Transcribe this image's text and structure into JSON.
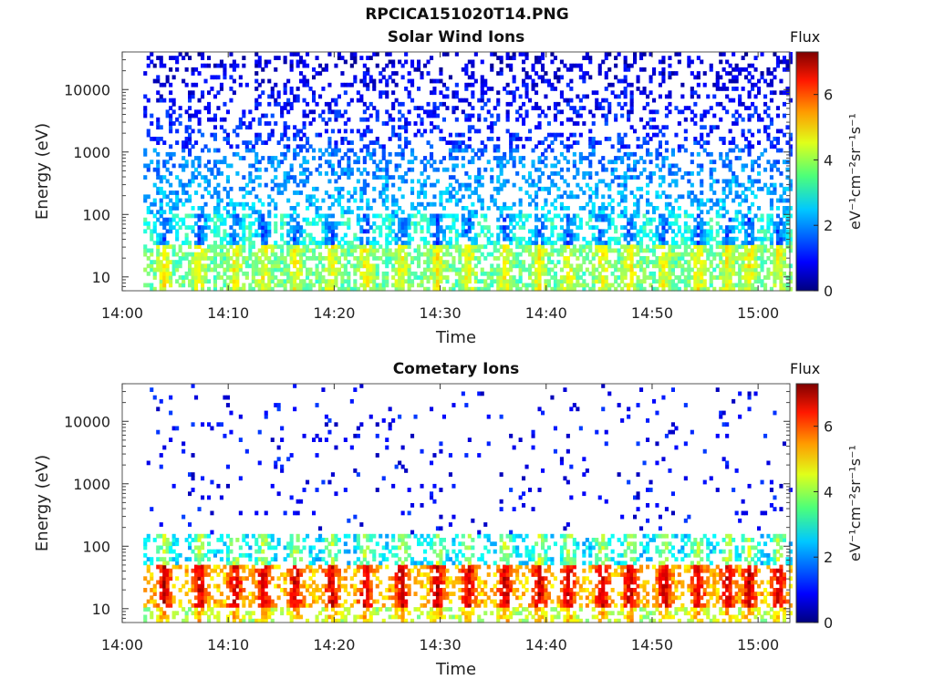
{
  "figure_title": "RPCICA151020T14.PNG",
  "chart_data": [
    {
      "type": "heatmap",
      "title": "Solar Wind Ions",
      "xlabel": "Time",
      "ylabel": "Energy (eV)",
      "x_ticks": [
        "14:00",
        "14:10",
        "14:20",
        "14:30",
        "14:40",
        "14:50",
        "15:00"
      ],
      "x_range_minutes": [
        0,
        63
      ],
      "y_scale": "log",
      "y_ticks": [
        "10",
        "100",
        "1000",
        "10000"
      ],
      "y_range": [
        6,
        40000
      ],
      "colorbar": {
        "title": "Flux",
        "label": "eV⁻¹cm⁻²sr⁻¹s⁻¹",
        "ticks": [
          "0",
          "2",
          "4",
          "6"
        ],
        "range": [
          0,
          7.3
        ],
        "colormap": "jet"
      },
      "flux_typical": {
        "below_30eV": 3.5,
        "30_to_100eV": 3.0,
        "100_to_1000eV": 2.3,
        "above_1000eV": 1.3
      },
      "flux_peak": 4.5,
      "burst_times_minutes": [
        3.8,
        7.2,
        10.5,
        13.2,
        16.2,
        19.6,
        22.8,
        26.2,
        29.6,
        32.5,
        36.0,
        39.2,
        42.0,
        45.1,
        47.8,
        51.0,
        54.2,
        57.0,
        59.0,
        61.8
      ]
    },
    {
      "type": "heatmap",
      "title": "Cometary Ions",
      "xlabel": "Time",
      "ylabel": "Energy (eV)",
      "x_ticks": [
        "14:00",
        "14:10",
        "14:20",
        "14:30",
        "14:40",
        "14:50",
        "15:00"
      ],
      "x_range_minutes": [
        0,
        63
      ],
      "y_scale": "log",
      "y_ticks": [
        "10",
        "100",
        "1000",
        "10000"
      ],
      "y_range": [
        6,
        40000
      ],
      "colorbar": {
        "title": "Flux",
        "label": "eV⁻¹cm⁻²sr⁻¹s⁻¹",
        "ticks": [
          "0",
          "2",
          "4",
          "6"
        ],
        "range": [
          0,
          7.3
        ],
        "colormap": "jet"
      },
      "flux_typical": {
        "band_10_to_50eV": 5.0,
        "band_50_to_150eV": 2.5,
        "above_150eV": 0.9
      },
      "flux_peak": 6.8,
      "burst_times_minutes": [
        3.8,
        7.2,
        10.5,
        13.2,
        16.2,
        19.6,
        22.8,
        26.2,
        29.6,
        32.5,
        36.0,
        39.2,
        42.0,
        45.1,
        47.8,
        51.0,
        54.2,
        57.0,
        59.0,
        61.8
      ]
    }
  ]
}
